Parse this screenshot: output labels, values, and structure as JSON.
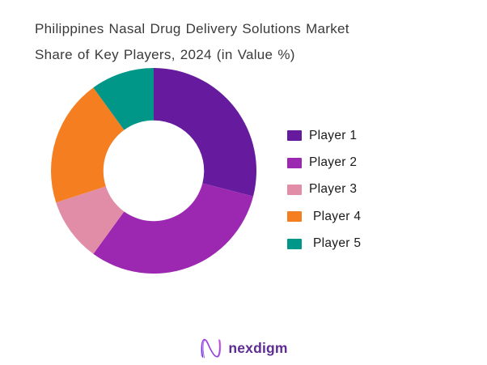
{
  "title": "Philippines Nasal Drug Delivery Solutions Market Share of Key Players, 2024 (in Value %)",
  "chart_data": {
    "type": "pie",
    "variant": "donut",
    "title": "Philippines Nasal Drug Delivery Solutions Market Share of Key Players, 2024 (in Value %)",
    "categories": [
      "Player 1",
      "Player 2",
      "Player 3",
      "Player 4",
      "Player 5"
    ],
    "values": [
      29,
      31,
      10,
      20,
      10
    ],
    "unit": "%",
    "values_are_estimates_from_arc_angles": true,
    "colors": [
      "#661B9E",
      "#9C28B1",
      "#E18DA7",
      "#F57E20",
      "#009688"
    ],
    "start_angle_deg": 0,
    "direction": "clockwise",
    "inner_radius_ratio": 0.49,
    "data_labels": "none",
    "legend_position": "right",
    "legend": [
      "Player 1",
      "Player 2",
      "Player 3",
      "Player 4",
      "Player 5"
    ]
  },
  "logo": {
    "text": "nexdigm",
    "mark_icon": "n-wave-icon",
    "text_color": "#5e2c93",
    "mark_gradient_start": "#6a2bd9",
    "mark_gradient_end": "#c44fe2"
  },
  "style_colors": {
    "background": "#ffffff",
    "title_text": "#3a3a3a",
    "legend_text": "#1a1a1a"
  }
}
